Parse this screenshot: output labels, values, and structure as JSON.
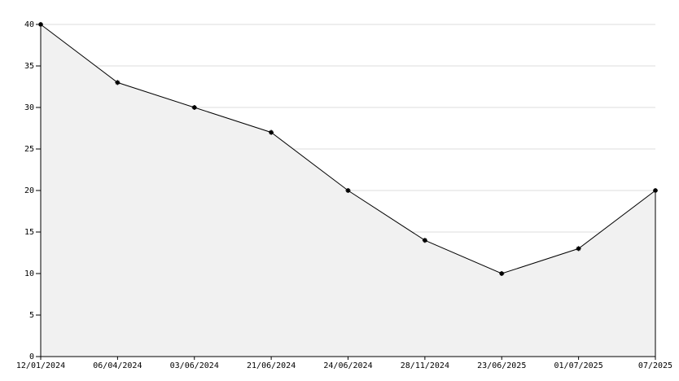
{
  "chart_data": {
    "type": "area",
    "categories": [
      "12/01/2024",
      "06/04/2024",
      "03/06/2024",
      "21/06/2024",
      "24/06/2024",
      "28/11/2024",
      "23/06/2025",
      "01/07/2025",
      "07/2025"
    ],
    "values": [
      40,
      33,
      30,
      27,
      20,
      14,
      10,
      13,
      20
    ],
    "color": "#000000",
    "fill": "#f1f1f1",
    "ylim": [
      0,
      40
    ],
    "yticks": [
      0,
      5,
      10,
      15,
      20,
      25,
      30,
      35,
      40
    ],
    "grid": true
  }
}
